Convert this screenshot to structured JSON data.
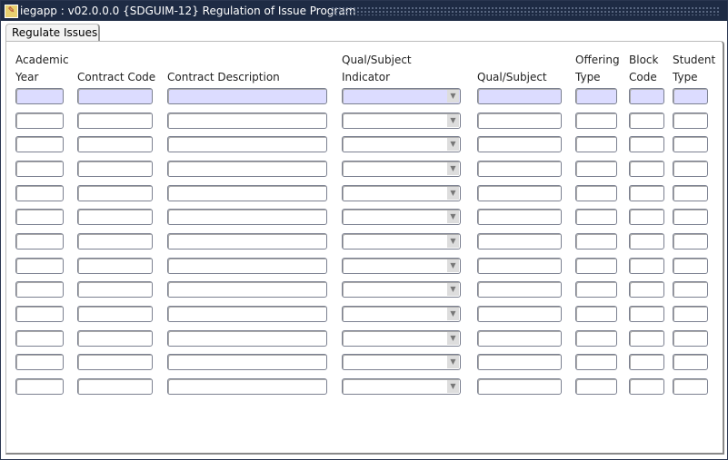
{
  "window": {
    "title": "iegapp : v02.0.0.0 {SDGUIM-12} Regulation of Issue Program"
  },
  "tab": {
    "label": "Regulate Issues"
  },
  "columns": [
    {
      "key": "academic_year",
      "line1": "Academic",
      "line2": "Year"
    },
    {
      "key": "contract_code",
      "line1": "",
      "line2": "Contract Code"
    },
    {
      "key": "contract_description",
      "line1": "",
      "line2": "Contract Description"
    },
    {
      "key": "qual_subject_indicator",
      "line1": "Qual/Subject",
      "line2": "Indicator"
    },
    {
      "key": "qual_subject",
      "line1": "",
      "line2": "Qual/Subject"
    },
    {
      "key": "offering_type",
      "line1": "Offering",
      "line2": "Type"
    },
    {
      "key": "block_code",
      "line1": "Block",
      "line2": "Code"
    },
    {
      "key": "student_type",
      "line1": "Student",
      "line2": "Type"
    }
  ],
  "rows": [
    {
      "academic_year": "",
      "contract_code": "",
      "contract_description": "",
      "qual_subject_indicator": "",
      "qual_subject": "",
      "offering_type": "",
      "block_code": "",
      "student_type": ""
    },
    {
      "academic_year": "",
      "contract_code": "",
      "contract_description": "",
      "qual_subject_indicator": "",
      "qual_subject": "",
      "offering_type": "",
      "block_code": "",
      "student_type": ""
    },
    {
      "academic_year": "",
      "contract_code": "",
      "contract_description": "",
      "qual_subject_indicator": "",
      "qual_subject": "",
      "offering_type": "",
      "block_code": "",
      "student_type": ""
    },
    {
      "academic_year": "",
      "contract_code": "",
      "contract_description": "",
      "qual_subject_indicator": "",
      "qual_subject": "",
      "offering_type": "",
      "block_code": "",
      "student_type": ""
    },
    {
      "academic_year": "",
      "contract_code": "",
      "contract_description": "",
      "qual_subject_indicator": "",
      "qual_subject": "",
      "offering_type": "",
      "block_code": "",
      "student_type": ""
    },
    {
      "academic_year": "",
      "contract_code": "",
      "contract_description": "",
      "qual_subject_indicator": "",
      "qual_subject": "",
      "offering_type": "",
      "block_code": "",
      "student_type": ""
    },
    {
      "academic_year": "",
      "contract_code": "",
      "contract_description": "",
      "qual_subject_indicator": "",
      "qual_subject": "",
      "offering_type": "",
      "block_code": "",
      "student_type": ""
    },
    {
      "academic_year": "",
      "contract_code": "",
      "contract_description": "",
      "qual_subject_indicator": "",
      "qual_subject": "",
      "offering_type": "",
      "block_code": "",
      "student_type": ""
    },
    {
      "academic_year": "",
      "contract_code": "",
      "contract_description": "",
      "qual_subject_indicator": "",
      "qual_subject": "",
      "offering_type": "",
      "block_code": "",
      "student_type": ""
    },
    {
      "academic_year": "",
      "contract_code": "",
      "contract_description": "",
      "qual_subject_indicator": "",
      "qual_subject": "",
      "offering_type": "",
      "block_code": "",
      "student_type": ""
    },
    {
      "academic_year": "",
      "contract_code": "",
      "contract_description": "",
      "qual_subject_indicator": "",
      "qual_subject": "",
      "offering_type": "",
      "block_code": "",
      "student_type": ""
    },
    {
      "academic_year": "",
      "contract_code": "",
      "contract_description": "",
      "qual_subject_indicator": "",
      "qual_subject": "",
      "offering_type": "",
      "block_code": "",
      "student_type": ""
    },
    {
      "academic_year": "",
      "contract_code": "",
      "contract_description": "",
      "qual_subject_indicator": "",
      "qual_subject": "",
      "offering_type": "",
      "block_code": "",
      "student_type": ""
    }
  ],
  "colors": {
    "title_bar": "#1e2b44",
    "current_row": "#dcdcff"
  }
}
